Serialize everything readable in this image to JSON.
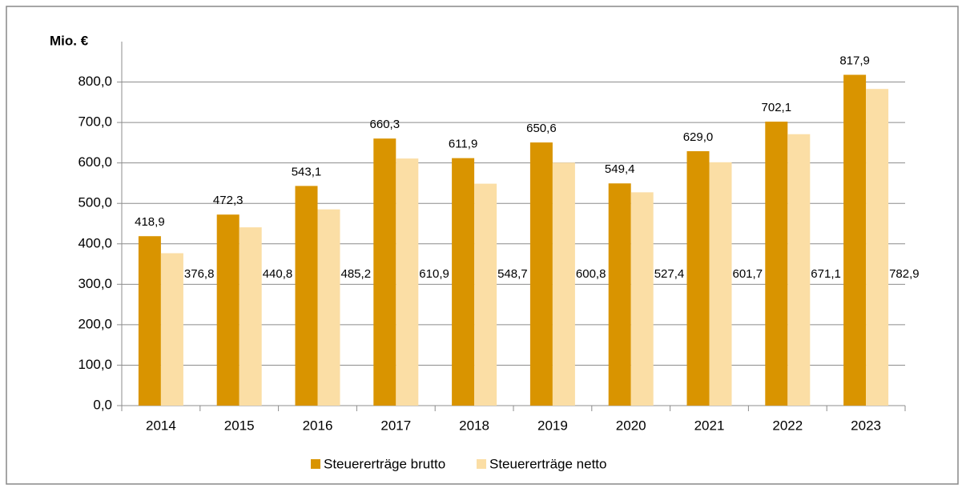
{
  "chart_data": {
    "type": "bar",
    "y_label": "Mio. €",
    "categories": [
      "2014",
      "2015",
      "2016",
      "2017",
      "2018",
      "2019",
      "2020",
      "2021",
      "2022",
      "2023"
    ],
    "series": [
      {
        "name": "Steuererträge brutto",
        "color": "#d99400",
        "values": [
          418.9,
          472.3,
          543.1,
          660.3,
          611.9,
          650.6,
          549.4,
          629.0,
          702.1,
          817.9
        ],
        "value_labels": [
          "418,9",
          "472,3",
          "543,1",
          "660,3",
          "611,9",
          "650,6",
          "549,4",
          "629,0",
          "702,1",
          "817,9"
        ]
      },
      {
        "name": "Steuererträge netto",
        "color": "#fbdea5",
        "values": [
          376.8,
          440.8,
          485.2,
          610.9,
          548.7,
          600.8,
          527.4,
          601.7,
          671.1,
          782.9
        ],
        "value_labels": [
          "376,8",
          "440,8",
          "485,2",
          "610,9",
          "548,7",
          "600,8",
          "527,4",
          "601,7",
          "671,1",
          "782,9"
        ]
      }
    ],
    "ylim": [
      0,
      900
    ],
    "yticks": [
      {
        "value": 0,
        "label": "0,0"
      },
      {
        "value": 100,
        "label": "100,0"
      },
      {
        "value": 200,
        "label": "200,0"
      },
      {
        "value": 300,
        "label": "300,0"
      },
      {
        "value": 400,
        "label": "400,0"
      },
      {
        "value": 500,
        "label": "500,0"
      },
      {
        "value": 600,
        "label": "600,0"
      },
      {
        "value": 700,
        "label": "700,0"
      },
      {
        "value": 800,
        "label": "800,0"
      }
    ],
    "grid": true
  }
}
